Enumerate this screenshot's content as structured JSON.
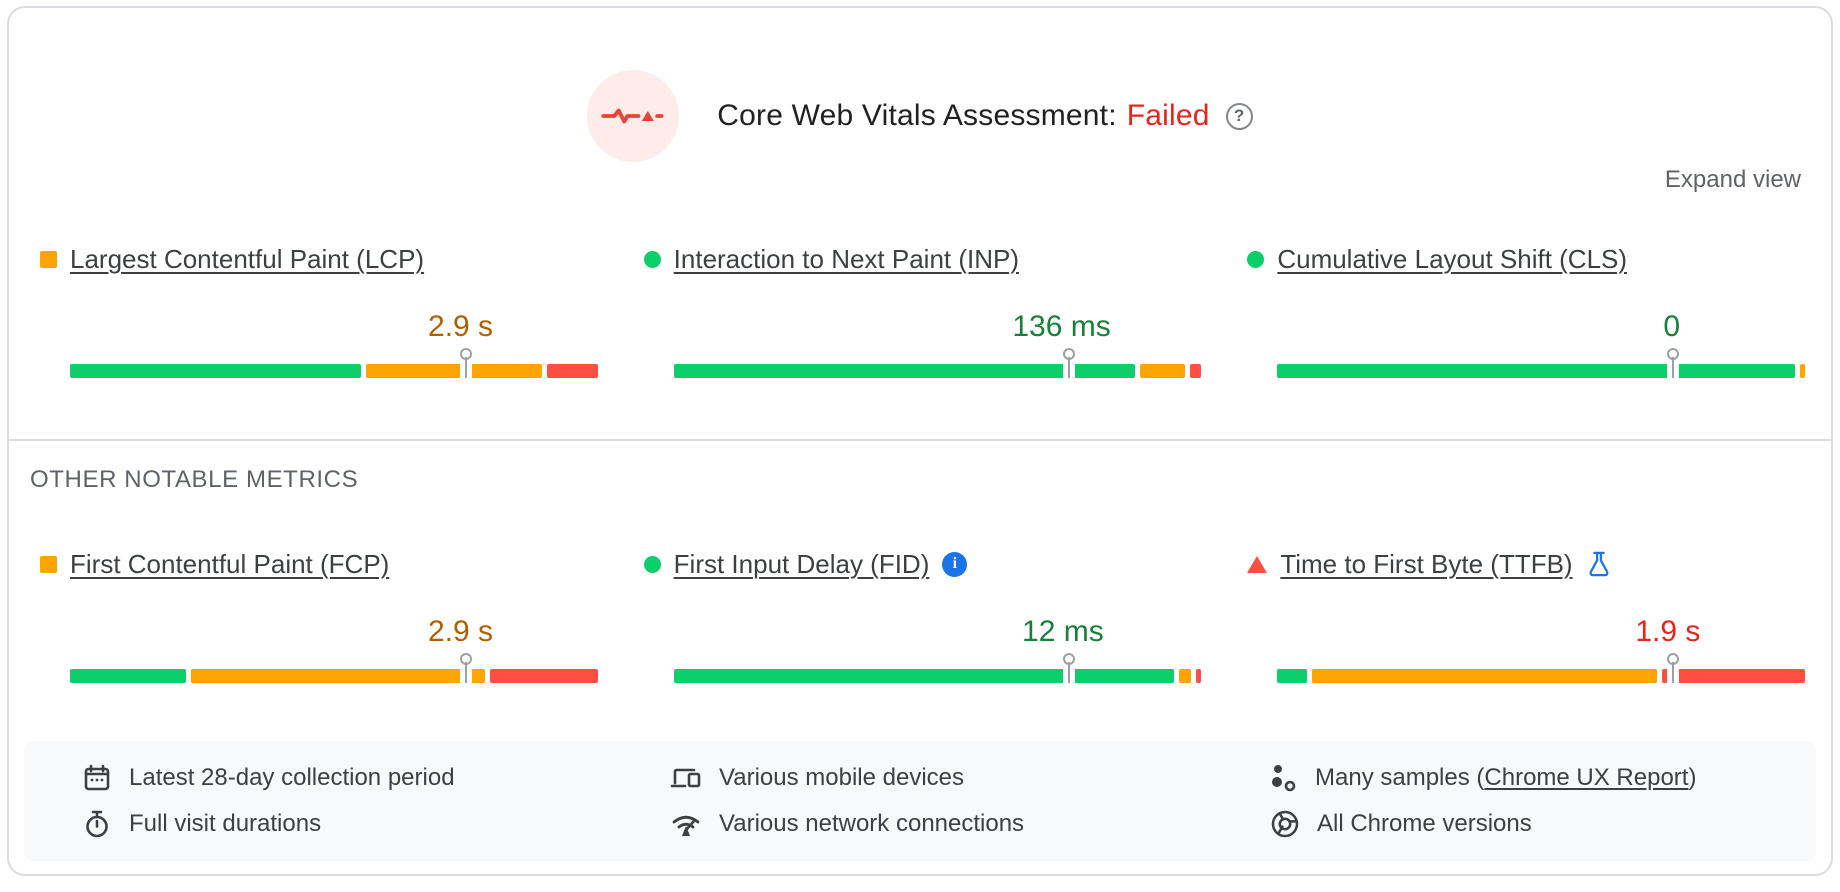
{
  "header": {
    "title": "Core Web Vitals Assessment:",
    "status": "Failed",
    "status_color": "#e8251b",
    "icon": "pulse-icon",
    "help_icon": "question-mark-icon"
  },
  "expand_view_label": "Expand view",
  "section_label": "OTHER NOTABLE METRICS",
  "colors": {
    "bar_green": "#0cce6b",
    "bar_orange": "#ffa400",
    "bar_red": "#ff4e42",
    "value_green": "#188038",
    "value_orange": "#b06000",
    "value_red": "#e8251b"
  },
  "core_metrics": [
    {
      "label": "Largest Contentful Paint (LCP)",
      "bullet": "square-orange",
      "value": "2.9 s",
      "value_color": "value_orange",
      "segments": [
        {
          "color": "green",
          "pct": 55
        },
        {
          "color": "orange",
          "pct": 33.5
        },
        {
          "color": "red",
          "pct": 9.5
        }
      ],
      "p75_percent": 75
    },
    {
      "label": "Interaction to Next Paint (INP)",
      "bullet": "circle-green",
      "value": "136 ms",
      "value_color": "value_green",
      "segments": [
        {
          "color": "green",
          "pct": 87.7
        },
        {
          "color": "orange",
          "pct": 8.7
        },
        {
          "color": "red",
          "pct": 2.1
        }
      ],
      "p75_percent": 75
    },
    {
      "label": "Cumulative Layout Shift (CLS)",
      "bullet": "circle-green",
      "value": "0",
      "value_color": "value_green",
      "segments": [
        {
          "color": "green",
          "pct": 98.9
        },
        {
          "color": "orange",
          "pct": 0.9
        }
      ],
      "p75_percent": 75
    }
  ],
  "other_metrics": [
    {
      "label": "First Contentful Paint (FCP)",
      "bullet": "square-orange",
      "value": "2.9 s",
      "value_color": "value_orange",
      "segments": [
        {
          "color": "green",
          "pct": 21.8
        },
        {
          "color": "orange",
          "pct": 55
        },
        {
          "color": "red",
          "pct": 20.1
        }
      ],
      "p75_percent": 75
    },
    {
      "label": "First Input Delay (FID)",
      "bullet": "circle-green",
      "badge": "info-icon",
      "value": "12 ms",
      "value_color": "value_green",
      "segments": [
        {
          "color": "green",
          "pct": 96.4
        },
        {
          "color": "orange",
          "pct": 2.2
        },
        {
          "color": "red",
          "pct": 1.1
        }
      ],
      "p75_percent": 75
    },
    {
      "label": "Time to First Byte (TTFB)",
      "bullet": "triangle-red",
      "badge": "flask-icon",
      "value": "1.9 s",
      "value_color": "value_red",
      "segments": [
        {
          "color": "green",
          "pct": 5.5
        },
        {
          "color": "orange",
          "pct": 64.4
        },
        {
          "color": "red",
          "pct": 26.7
        }
      ],
      "p75_percent": 75
    }
  ],
  "footer": {
    "items": [
      {
        "icon": "calendar-icon",
        "text": "Latest 28-day collection period"
      },
      {
        "icon": "devices-icon",
        "text": "Various mobile devices"
      },
      {
        "icon": "samples-icon",
        "text_prefix": "Many samples (",
        "link": "Chrome UX Report",
        "text_suffix": ")"
      },
      {
        "icon": "stopwatch-icon",
        "text": "Full visit durations"
      },
      {
        "icon": "network-icon",
        "text": "Various network connections"
      },
      {
        "icon": "chrome-icon",
        "text": "All Chrome versions"
      }
    ]
  }
}
